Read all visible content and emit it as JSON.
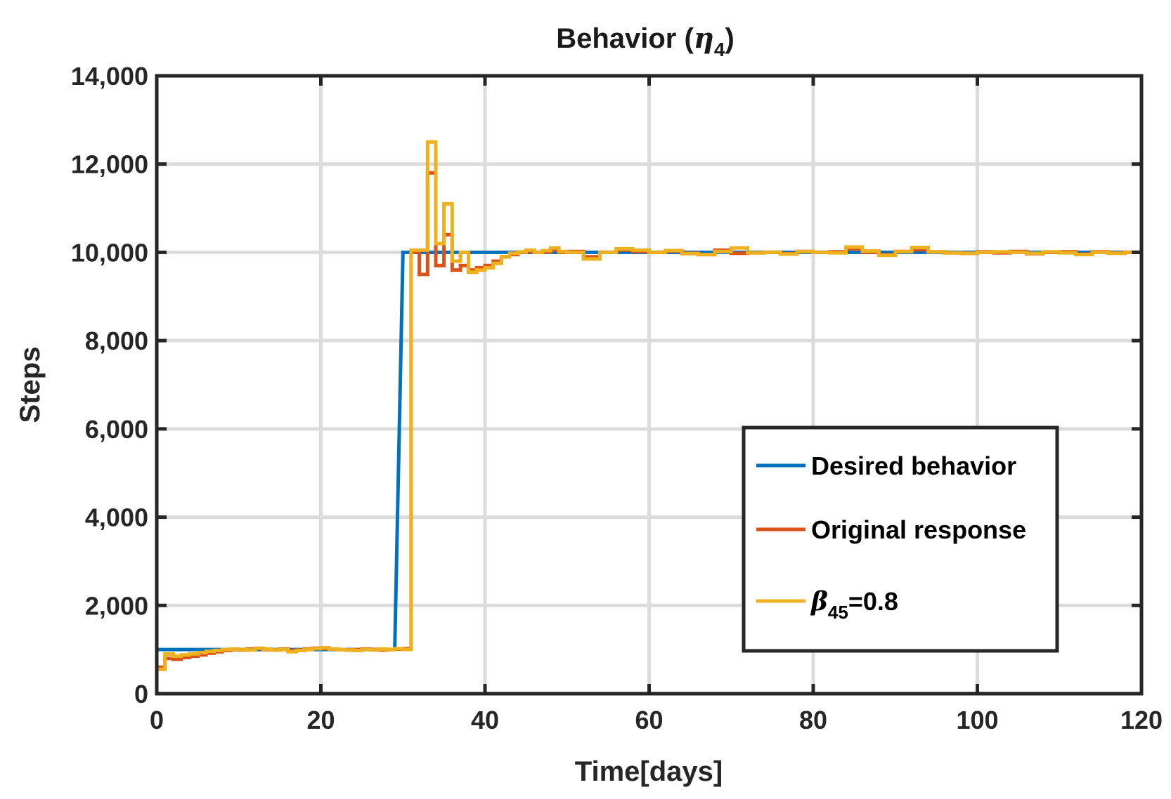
{
  "chart_data": {
    "type": "line",
    "title": {
      "main": "Behavior (",
      "symbol": "η",
      "sub": "4",
      "close": ")"
    },
    "xlabel": "Time[days]",
    "ylabel": "Steps",
    "xlim": [
      0,
      120
    ],
    "ylim": [
      0,
      14000
    ],
    "xticks": [
      0,
      20,
      40,
      60,
      80,
      100,
      120
    ],
    "xtick_labels": [
      "0",
      "20",
      "40",
      "60",
      "80",
      "100",
      "120"
    ],
    "yticks": [
      0,
      2000,
      4000,
      6000,
      8000,
      10000,
      12000,
      14000
    ],
    "ytick_labels": [
      "0",
      "2,000",
      "4,000",
      "6,000",
      "8,000",
      "10,000",
      "12,000",
      "14,000"
    ],
    "grid": true,
    "legend_position": "lower-right",
    "series": [
      {
        "name": "Desired behavior",
        "color": "#0072BD",
        "step": false,
        "x": [
          0,
          29,
          30,
          120
        ],
        "y": [
          1000,
          1000,
          10000,
          10000
        ]
      },
      {
        "name": "Original response",
        "color": "#D95319",
        "step": true,
        "x": [
          0,
          1,
          2,
          3,
          4,
          5,
          6,
          7,
          8,
          9,
          10,
          11,
          12,
          13,
          14,
          15,
          16,
          17,
          18,
          19,
          20,
          21,
          22,
          23,
          24,
          25,
          26,
          27,
          28,
          29,
          30,
          31,
          32,
          33,
          34,
          35,
          36,
          37,
          38,
          39,
          40,
          41,
          42,
          43,
          44,
          45,
          46,
          47,
          48,
          49,
          50,
          52,
          54,
          56,
          58,
          60,
          62,
          64,
          66,
          68,
          70,
          72,
          74,
          76,
          78,
          80,
          82,
          84,
          86,
          88,
          90,
          92,
          94,
          96,
          98,
          100,
          102,
          104,
          106,
          108,
          110,
          112,
          114,
          116,
          118,
          120
        ],
        "y": [
          600,
          800,
          780,
          820,
          850,
          880,
          920,
          950,
          980,
          1000,
          990,
          1010,
          1020,
          1000,
          990,
          1010,
          980,
          990,
          1010,
          1030,
          1020,
          1010,
          1000,
          990,
          1000,
          1010,
          1000,
          990,
          1000,
          1010,
          1020,
          10000,
          9500,
          11800,
          9700,
          10400,
          9600,
          9700,
          9600,
          9650,
          9700,
          9800,
          9900,
          9950,
          10000,
          10020,
          10000,
          10010,
          10050,
          10000,
          10020,
          9900,
          10000,
          10050,
          10020,
          10000,
          10030,
          9980,
          9950,
          10050,
          9980,
          9990,
          10000,
          9970,
          10020,
          10000,
          10010,
          10080,
          10000,
          9950,
          10020,
          10060,
          10010,
          9990,
          9980,
          10010,
          9990,
          10020,
          9970,
          10000,
          10010,
          9960,
          10010,
          9990,
          10000,
          10020
        ]
      },
      {
        "name": "β45=0.8",
        "label_symbol": "β",
        "label_sub": "45",
        "label_rest": "=0.8",
        "color": "#EDB120",
        "step": true,
        "x": [
          0,
          1,
          2,
          3,
          4,
          5,
          6,
          7,
          8,
          9,
          10,
          11,
          12,
          13,
          14,
          15,
          16,
          17,
          18,
          19,
          20,
          21,
          22,
          23,
          24,
          25,
          26,
          27,
          28,
          29,
          30,
          31,
          32,
          33,
          34,
          35,
          36,
          37,
          38,
          39,
          40,
          41,
          42,
          43,
          44,
          45,
          46,
          47,
          48,
          49,
          50,
          52,
          54,
          56,
          58,
          60,
          62,
          64,
          66,
          68,
          70,
          72,
          74,
          76,
          78,
          80,
          82,
          84,
          86,
          88,
          90,
          92,
          94,
          96,
          98,
          100,
          102,
          104,
          106,
          108,
          110,
          112,
          114,
          116,
          118,
          120
        ],
        "y": [
          550,
          900,
          850,
          880,
          900,
          930,
          960,
          980,
          1000,
          1010,
          1000,
          990,
          1030,
          1010,
          990,
          1000,
          950,
          980,
          1000,
          1020,
          1040,
          1010,
          1000,
          990,
          980,
          1000,
          990,
          1010,
          1000,
          1020,
          1000,
          10050,
          10050,
          12500,
          10200,
          11100,
          9800,
          10000,
          9550,
          9600,
          9650,
          9750,
          9900,
          9980,
          10010,
          10050,
          10000,
          10040,
          10100,
          10020,
          10000,
          9850,
          10000,
          10080,
          10050,
          10000,
          10040,
          9970,
          9950,
          10020,
          10100,
          9990,
          10000,
          9960,
          10020,
          10000,
          9990,
          10120,
          10030,
          9930,
          10020,
          10110,
          10010,
          9990,
          9980,
          10000,
          10010,
          10000,
          9980,
          10010,
          9990,
          9950,
          10000,
          9980,
          10000,
          10030
        ]
      }
    ]
  }
}
